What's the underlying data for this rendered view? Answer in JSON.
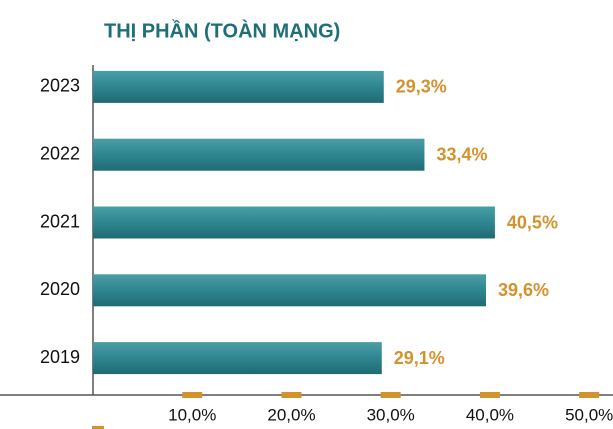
{
  "chart_data": {
    "type": "bar",
    "orientation": "horizontal",
    "title": "THỊ PHẦN (TOÀN MẠNG)",
    "categories": [
      "2023",
      "2022",
      "2021",
      "2020",
      "2019"
    ],
    "values": [
      29.3,
      33.4,
      40.5,
      39.6,
      29.1
    ],
    "value_labels": [
      "29,3%",
      "33,4%",
      "40,5%",
      "39,6%",
      "29,1%"
    ],
    "color": "#2f8690",
    "label_color": "#d4922c",
    "tick_color": "#d4922c",
    "xlim": [
      0,
      52.4
    ],
    "xticks": [
      {
        "value": 10,
        "label": "10,0%"
      },
      {
        "value": 20,
        "label": "20,0%"
      },
      {
        "value": 30,
        "label": "30,0%"
      },
      {
        "value": 40,
        "label": "40,0%"
      },
      {
        "value": 50,
        "label": "50,0%"
      }
    ],
    "grid": false
  }
}
